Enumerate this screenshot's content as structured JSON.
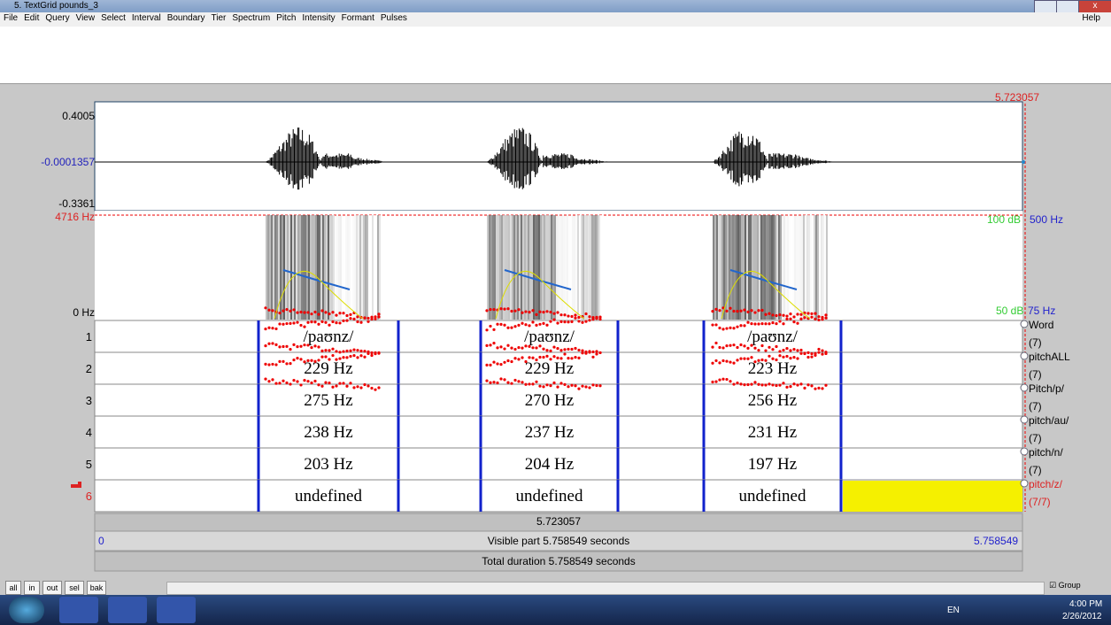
{
  "window": {
    "title": "5. TextGrid pounds_3"
  },
  "menu": {
    "items": [
      "File",
      "Edit",
      "Query",
      "View",
      "Select",
      "Interval",
      "Boundary",
      "Tier",
      "Spectrum",
      "Pitch",
      "Intensity",
      "Formant",
      "Pulses"
    ],
    "help": "Help"
  },
  "cursor_time": "5.723057",
  "waveform": {
    "max": "0.4005",
    "cursor_value": "-0.0001357",
    "min": "-0.3361"
  },
  "spectrogram": {
    "max_freq": "4716 Hz",
    "min_freq": "0 Hz",
    "intensity_max": "100 dB",
    "intensity_min": "50 dB",
    "pitch_max": "500 Hz",
    "pitch_min": "75 Hz"
  },
  "tiers": [
    {
      "number": "1",
      "name": "Word",
      "count": "(7)",
      "intervals": [
        "/paʊnz/",
        "/paʊnz/",
        "/paʊnz/"
      ]
    },
    {
      "number": "2",
      "name": "pitchALL",
      "count": "(7)",
      "intervals": [
        "229 Hz",
        "229 Hz",
        "223 Hz"
      ]
    },
    {
      "number": "3",
      "name": "Pitch/p/",
      "count": "(7)",
      "intervals": [
        "275 Hz",
        "270 Hz",
        "256 Hz"
      ]
    },
    {
      "number": "4",
      "name": "pitch/au/",
      "count": "(7)",
      "intervals": [
        "238 Hz",
        "237 Hz",
        "231 Hz"
      ]
    },
    {
      "number": "5",
      "name": "pitch/n/",
      "count": "(7)",
      "intervals": [
        "203 Hz",
        "204 Hz",
        "197 Hz"
      ]
    },
    {
      "number": "6",
      "name": "pitch/z/",
      "count": "(7/7)",
      "intervals": [
        "undefined",
        "undefined",
        "undefined"
      ]
    }
  ],
  "footer": {
    "cursor_time": "5.723057",
    "visible_start": "0",
    "visible_part": "Visible part 5.758549 seconds",
    "visible_end": "5.758549",
    "total_duration": "Total duration 5.758549 seconds"
  },
  "buttons": [
    "all",
    "in",
    "out",
    "sel",
    "bak"
  ],
  "group": "Group",
  "taskbar": {
    "language": "EN",
    "time": "4:00 PM",
    "date": "2/26/2012"
  }
}
